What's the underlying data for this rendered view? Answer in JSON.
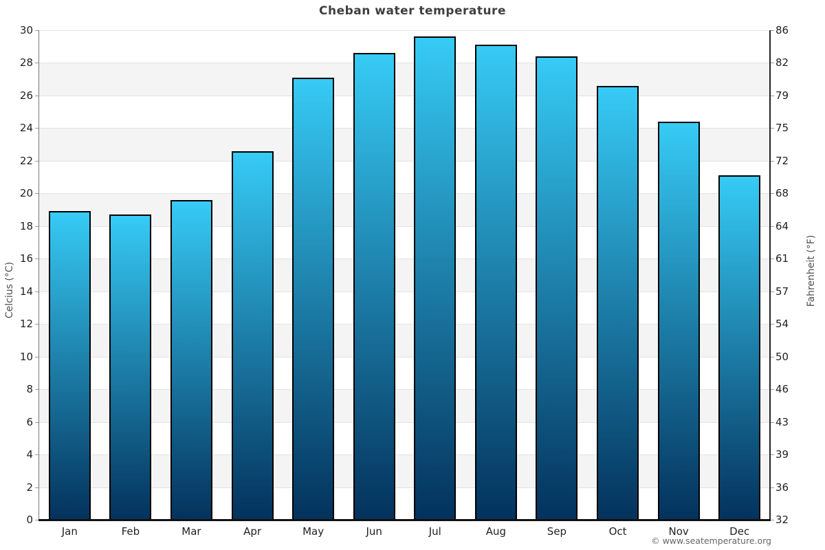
{
  "page": {
    "footer": "© www.seatemperature.org"
  },
  "chart_data": {
    "type": "bar",
    "title": "Cheban water temperature",
    "categories": [
      "Jan",
      "Feb",
      "Mar",
      "Apr",
      "May",
      "Jun",
      "Jul",
      "Aug",
      "Sep",
      "Oct",
      "Nov",
      "Dec"
    ],
    "values": [
      18.9,
      18.7,
      19.6,
      22.6,
      27.1,
      28.6,
      29.6,
      29.1,
      28.4,
      26.6,
      24.4,
      21.1
    ],
    "xlabel": "",
    "ylabel_left": "Celcius (°C)",
    "ylabel_right": "Fahrenheit (°F)",
    "ylim": [
      0,
      30
    ],
    "celsius_ticks": [
      0,
      2,
      4,
      6,
      8,
      10,
      12,
      14,
      16,
      18,
      20,
      22,
      24,
      26,
      28,
      30
    ],
    "fahrenheit_ticks": [
      "32",
      "36",
      "39",
      "43",
      "46",
      "50",
      "54",
      "57",
      "61",
      "64",
      "68",
      "72",
      "75",
      "79",
      "82",
      "86"
    ],
    "legend": "none",
    "grid": "alternating horizontal bands every 2°C",
    "colors": {
      "bar_gradient_top": "#36cbf5",
      "bar_gradient_bottom": "#03325c",
      "bar_border": "#000000",
      "band_gray": "#f4f4f4",
      "gridline": "#e3e3e3",
      "title": "#3f3f3f",
      "axis_left_line": "#777777",
      "axis_right_line": "#222222",
      "axis_bottom_line": "#111111",
      "footer": "#666666"
    }
  }
}
